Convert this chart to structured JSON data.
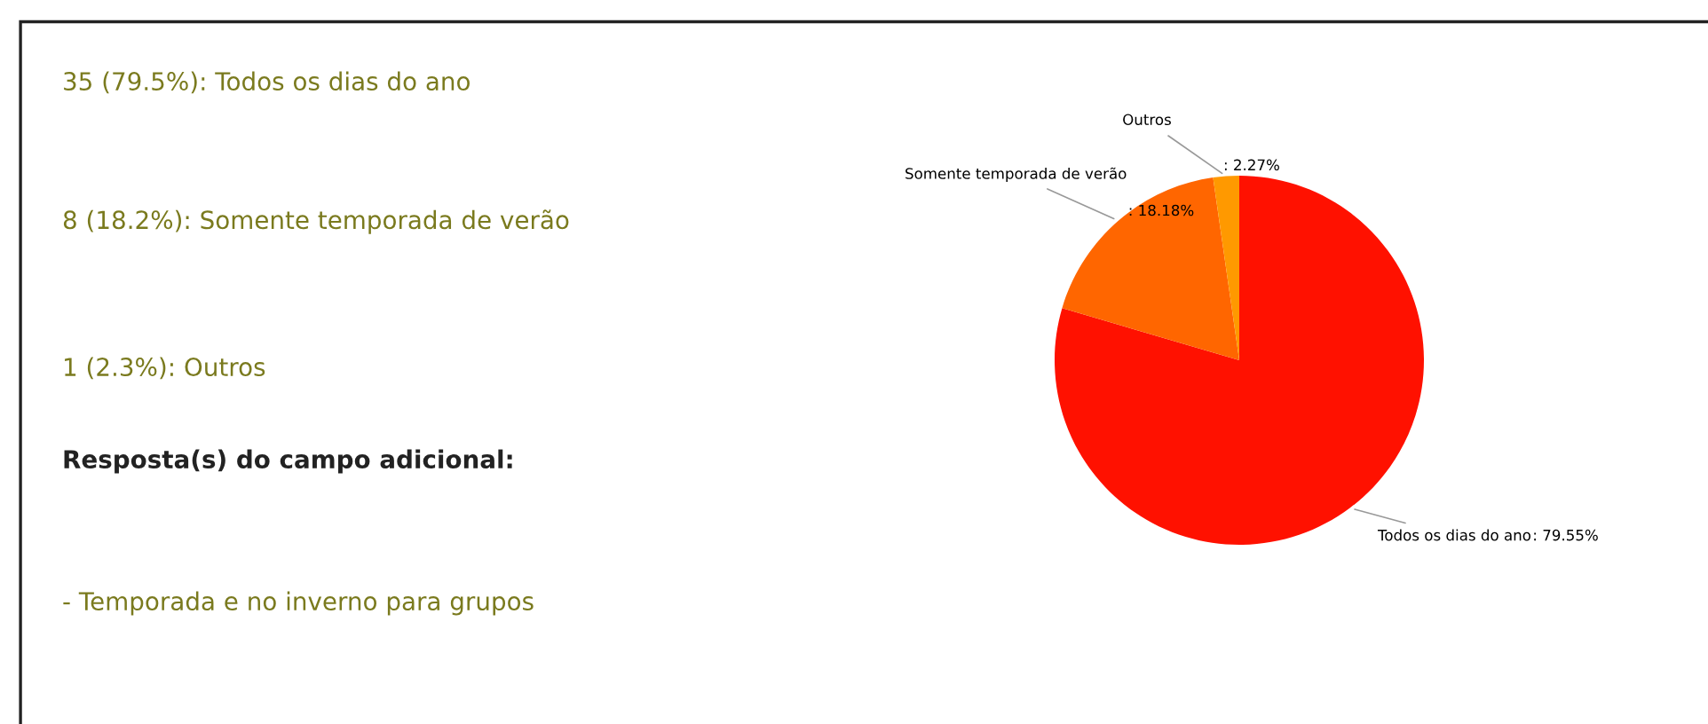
{
  "chart_data": {
    "type": "pie",
    "categories": [
      "Todos os dias do ano",
      "Somente temporada de verão",
      "Outros"
    ],
    "values": [
      79.55,
      18.18,
      2.27
    ],
    "colors": [
      "#ff1100",
      "#ff6600",
      "#ff9900"
    ],
    "value_labels": [
      ": 79.55%",
      ": 18.18%",
      ": 2.27%"
    ],
    "annotations": [
      "35 (79.5%): Todos os dias do ano",
      "8 (18.2%): Somente temporada de verão",
      "1 (2.3%): Outros",
      "Resposta(s) do campo adicional:",
      "- Temporada e no inverno para grupos"
    ]
  }
}
